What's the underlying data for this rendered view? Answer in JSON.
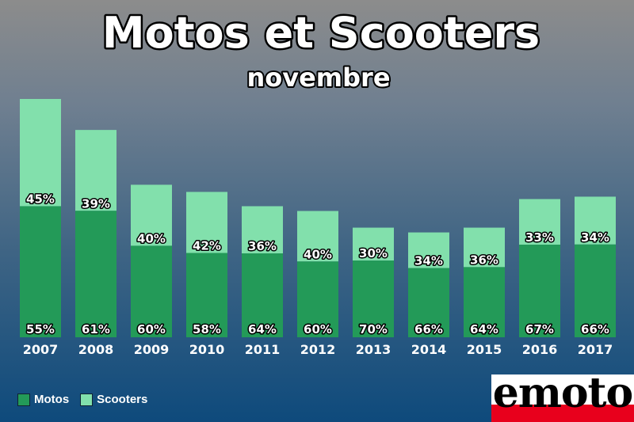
{
  "title": "Motos et Scooters",
  "subtitle": "novembre",
  "logo_text": "emoto",
  "colors": {
    "motos": "#239a58",
    "scooters": "#82e0ac",
    "logo_red": "#e8001c"
  },
  "legend": [
    {
      "label": "Motos",
      "color": "#239a58"
    },
    {
      "label": "Scooters",
      "color": "#82e0ac"
    }
  ],
  "chart_data": {
    "type": "bar",
    "stacked": true,
    "categories": [
      "2007",
      "2008",
      "2009",
      "2010",
      "2011",
      "2012",
      "2013",
      "2014",
      "2015",
      "2016",
      "2017"
    ],
    "series": [
      {
        "name": "Motos",
        "percent_labels": [
          "55%",
          "61%",
          "60%",
          "58%",
          "64%",
          "60%",
          "70%",
          "66%",
          "64%",
          "67%",
          "66%"
        ],
        "share": [
          55,
          61,
          60,
          58,
          64,
          60,
          70,
          66,
          64,
          67,
          66
        ]
      },
      {
        "name": "Scooters",
        "percent_labels": [
          "45%",
          "39%",
          "40%",
          "42%",
          "36%",
          "40%",
          "30%",
          "34%",
          "36%",
          "33%",
          "34%"
        ],
        "share": [
          45,
          39,
          40,
          42,
          36,
          40,
          30,
          34,
          36,
          33,
          34
        ]
      }
    ],
    "totals_relative": [
      100,
      87,
      64,
      61,
      55,
      53,
      46,
      44,
      46,
      58,
      59
    ],
    "legend_position": "bottom-left",
    "grid": false
  }
}
